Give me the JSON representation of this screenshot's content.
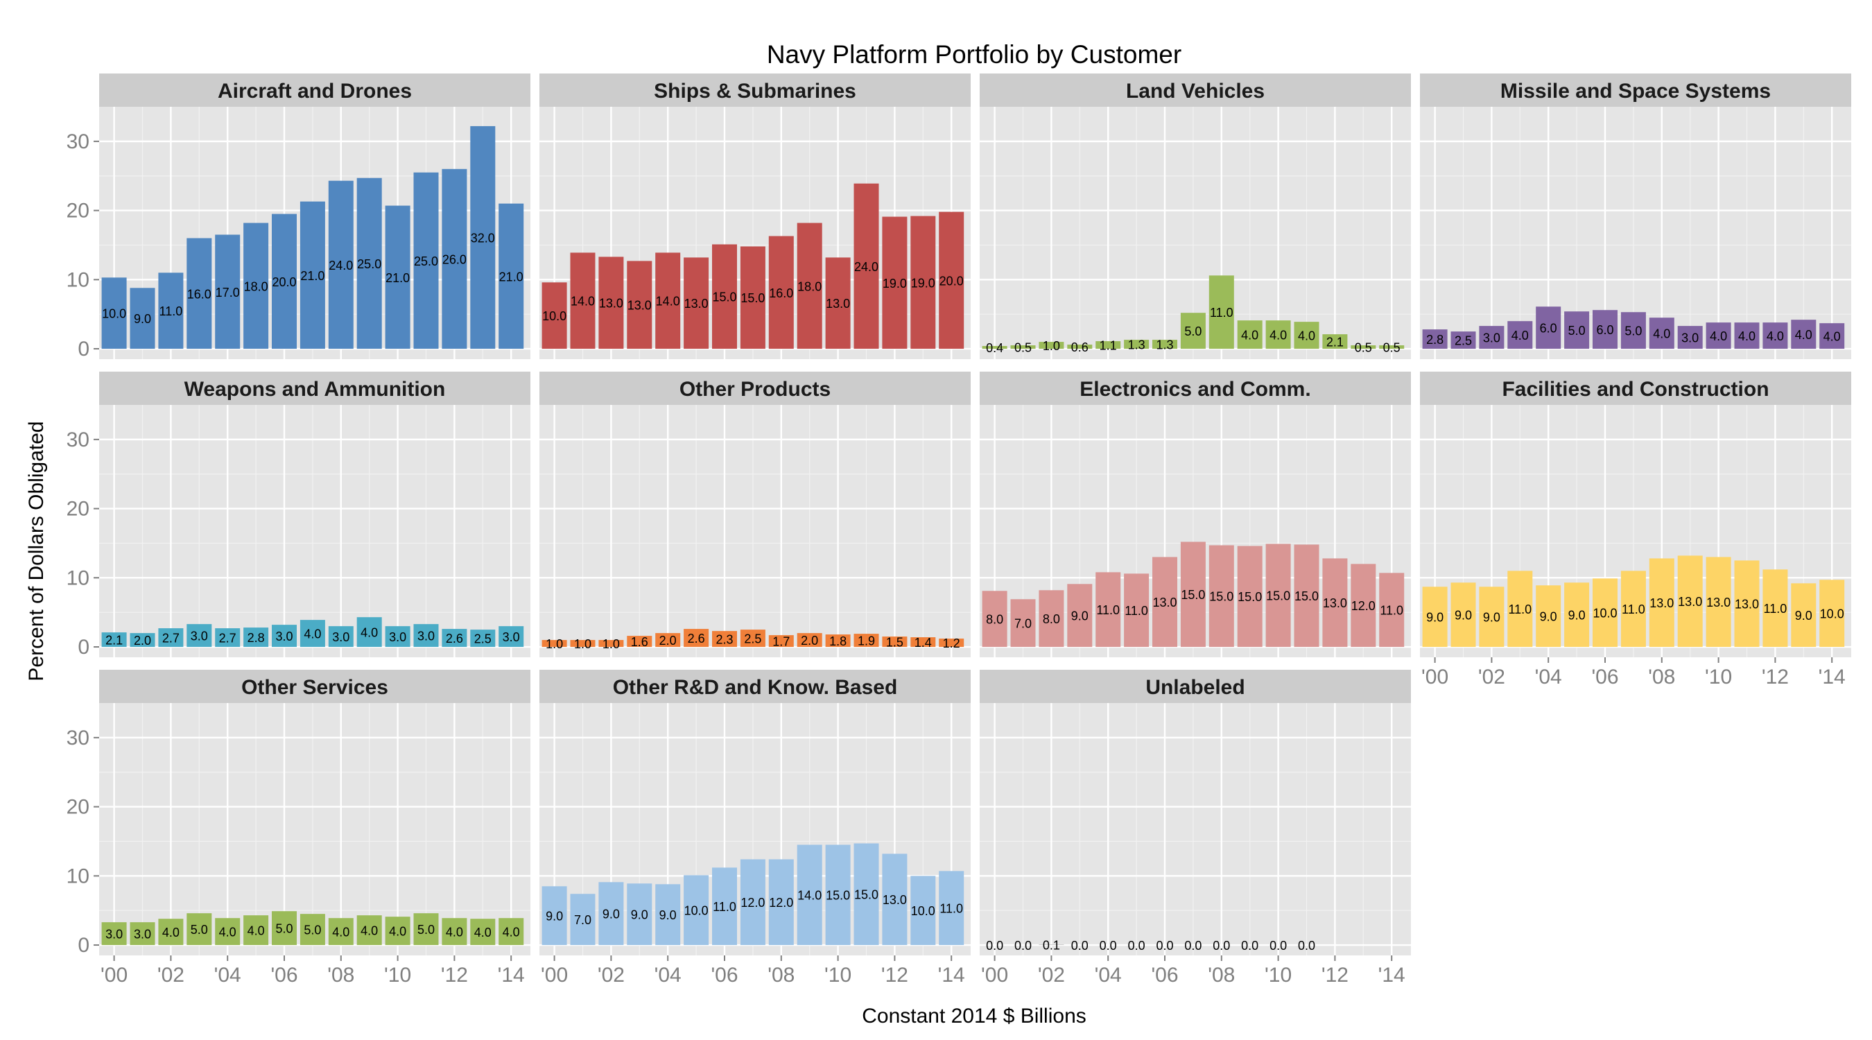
{
  "chart_data": {
    "type": "bar",
    "title": "Navy Platform Portfolio by Customer",
    "xlabel": "Constant 2014 $ Billions",
    "ylabel": "Percent of Dollars Obligated",
    "ylim": [
      -1.5,
      35
    ],
    "yticks": [
      0,
      10,
      20,
      30
    ],
    "categories": [
      "'00",
      "'01",
      "'02",
      "'03",
      "'04",
      "'05",
      "'06",
      "'07",
      "'08",
      "'09",
      "'10",
      "'11",
      "'12",
      "'13",
      "'14"
    ],
    "xtick_labels": [
      "'00",
      "'02",
      "'04",
      "'06",
      "'08",
      "'10",
      "'12",
      "'14"
    ],
    "grid": true,
    "facets": [
      {
        "name": "Aircraft and Drones",
        "color": "#5187c0",
        "values": [
          10.3,
          8.8,
          11.0,
          16.0,
          16.5,
          18.2,
          19.5,
          21.3,
          24.3,
          24.7,
          20.7,
          25.5,
          26.0,
          32.2,
          21.0
        ],
        "labels": [
          "10.0",
          "9.0",
          "11.0",
          "16.0",
          "17.0",
          "18.0",
          "20.0",
          "21.0",
          "24.0",
          "25.0",
          "21.0",
          "25.0",
          "26.0",
          "32.0",
          "21.0"
        ]
      },
      {
        "name": "Ships & Submarines",
        "color": "#c14f4d",
        "values": [
          9.6,
          13.9,
          13.3,
          12.7,
          13.9,
          13.2,
          15.1,
          14.8,
          16.3,
          18.2,
          13.2,
          23.9,
          19.1,
          19.2,
          19.8
        ],
        "labels": [
          "10.0",
          "14.0",
          "13.0",
          "13.0",
          "14.0",
          "13.0",
          "15.0",
          "15.0",
          "16.0",
          "18.0",
          "13.0",
          "24.0",
          "19.0",
          "19.0",
          "20.0"
        ]
      },
      {
        "name": "Land Vehicles",
        "color": "#9bbb59",
        "values": [
          0.4,
          0.5,
          1.0,
          0.6,
          1.1,
          1.3,
          1.3,
          5.2,
          10.6,
          4.1,
          4.1,
          3.9,
          2.1,
          0.5,
          0.5
        ],
        "labels": [
          "0.4",
          "0.5",
          "1.0",
          "0.6",
          "1.1",
          "1.3",
          "1.3",
          "5.0",
          "11.0",
          "4.0",
          "4.0",
          "4.0",
          "2.1",
          "0.5",
          "0.5"
        ]
      },
      {
        "name": "Missile and Space Systems",
        "color": "#8064a2",
        "values": [
          2.8,
          2.5,
          3.3,
          4.0,
          6.1,
          5.4,
          5.6,
          5.3,
          4.5,
          3.3,
          3.8,
          3.8,
          3.8,
          4.2,
          3.7
        ],
        "labels": [
          "2.8",
          "2.5",
          "3.0",
          "4.0",
          "6.0",
          "5.0",
          "6.0",
          "5.0",
          "4.0",
          "3.0",
          "4.0",
          "4.0",
          "4.0",
          "4.0",
          "4.0"
        ]
      },
      {
        "name": "Weapons and Ammunition",
        "color": "#4bacc6",
        "values": [
          2.1,
          2.0,
          2.7,
          3.3,
          2.7,
          2.8,
          3.2,
          3.9,
          3.0,
          4.3,
          3.0,
          3.3,
          2.6,
          2.5,
          3.0
        ],
        "labels": [
          "2.1",
          "2.0",
          "2.7",
          "3.0",
          "2.7",
          "2.8",
          "3.0",
          "4.0",
          "3.0",
          "4.0",
          "3.0",
          "3.0",
          "2.6",
          "2.5",
          "3.0"
        ]
      },
      {
        "name": "Other Products",
        "color": "#f07f39",
        "values": [
          1.0,
          1.0,
          1.0,
          1.6,
          2.0,
          2.6,
          2.3,
          2.5,
          1.7,
          2.0,
          1.8,
          1.9,
          1.5,
          1.4,
          1.2
        ],
        "labels": [
          "1.0",
          "1.0",
          "1.0",
          "1.6",
          "2.0",
          "2.6",
          "2.3",
          "2.5",
          "1.7",
          "2.0",
          "1.8",
          "1.9",
          "1.5",
          "1.4",
          "1.2"
        ]
      },
      {
        "name": "Electronics and Comm.",
        "color": "#d99694",
        "values": [
          8.1,
          6.9,
          8.2,
          9.1,
          10.8,
          10.6,
          13.0,
          15.2,
          14.7,
          14.6,
          14.9,
          14.8,
          12.8,
          12.0,
          10.7
        ],
        "labels": [
          "8.0",
          "7.0",
          "8.0",
          "9.0",
          "11.0",
          "11.0",
          "13.0",
          "15.0",
          "15.0",
          "15.0",
          "15.0",
          "15.0",
          "13.0",
          "12.0",
          "11.0"
        ]
      },
      {
        "name": "Facilities and Construction",
        "color": "#fdd466",
        "values": [
          8.7,
          9.3,
          8.7,
          11.0,
          8.9,
          9.3,
          9.9,
          11.0,
          12.8,
          13.2,
          13.0,
          12.5,
          11.2,
          9.2,
          9.7
        ],
        "labels": [
          "9.0",
          "9.0",
          "9.0",
          "11.0",
          "9.0",
          "9.0",
          "10.0",
          "11.0",
          "13.0",
          "13.0",
          "13.0",
          "13.0",
          "11.0",
          "9.0",
          "10.0"
        ]
      },
      {
        "name": "Other Services",
        "color": "#9bbb59",
        "values": [
          3.3,
          3.3,
          3.8,
          4.6,
          3.9,
          4.3,
          4.9,
          4.5,
          3.9,
          4.3,
          4.1,
          4.6,
          3.9,
          3.8,
          3.9
        ],
        "labels": [
          "3.0",
          "3.0",
          "4.0",
          "5.0",
          "4.0",
          "4.0",
          "5.0",
          "5.0",
          "4.0",
          "4.0",
          "4.0",
          "5.0",
          "4.0",
          "4.0",
          "4.0"
        ]
      },
      {
        "name": "Other R&D and Know. Based",
        "color": "#9dc3e6",
        "values": [
          8.5,
          7.4,
          9.1,
          8.9,
          8.8,
          10.1,
          11.2,
          12.4,
          12.4,
          14.5,
          14.5,
          14.7,
          13.2,
          10.0,
          10.7
        ],
        "labels": [
          "9.0",
          "7.0",
          "9.0",
          "9.0",
          "9.0",
          "10.0",
          "11.0",
          "12.0",
          "12.0",
          "14.0",
          "15.0",
          "15.0",
          "13.0",
          "10.0",
          "11.0"
        ]
      },
      {
        "name": "Unlabeled",
        "color": "#cccccc",
        "values": [
          0.0,
          0.0,
          0.1,
          0.0,
          0.0,
          0.0,
          0.0,
          0.0,
          0.0,
          0.0,
          0.0,
          0.0,
          null,
          null,
          null
        ],
        "labels": [
          "0.0",
          "0.0",
          "0.1",
          "0.0",
          "0.0",
          "0.0",
          "0.0",
          "0.0",
          "0.0",
          "0.0",
          "0.0",
          "0.0",
          null,
          null,
          null
        ]
      }
    ]
  }
}
